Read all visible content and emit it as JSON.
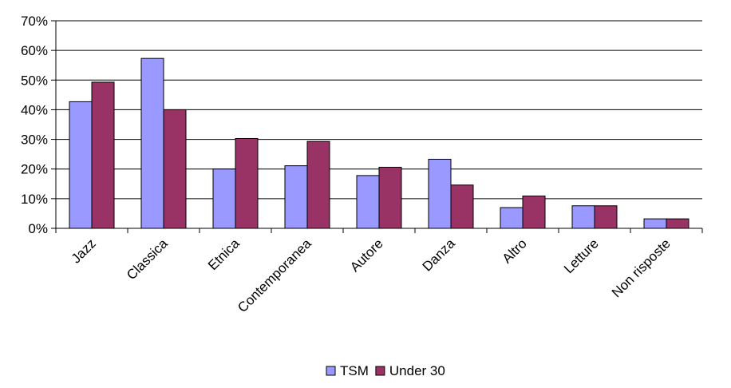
{
  "chart_data": {
    "type": "bar",
    "title": "",
    "xlabel": "",
    "ylabel": "",
    "ylim": [
      0,
      70
    ],
    "y_ticks": [
      "0%",
      "10%",
      "20%",
      "30%",
      "40%",
      "50%",
      "60%",
      "70%"
    ],
    "y_tick_values": [
      0,
      10,
      20,
      30,
      40,
      50,
      60,
      70
    ],
    "grid": true,
    "legend_position": "bottom",
    "categories": [
      "Jazz",
      "Classica",
      "Etnica",
      "Contemporanea",
      "Autore",
      "Danza",
      "Altro",
      "Letture",
      "Non risposte"
    ],
    "series": [
      {
        "name": "TSM",
        "color": "#9999ff",
        "values": [
          42.7,
          57.3,
          20.0,
          21.1,
          17.8,
          23.3,
          7.0,
          7.6,
          3.2
        ]
      },
      {
        "name": "Under 30",
        "color": "#993366",
        "values": [
          49.3,
          40.0,
          30.3,
          29.3,
          20.6,
          14.6,
          10.9,
          7.6,
          3.2
        ]
      }
    ]
  }
}
